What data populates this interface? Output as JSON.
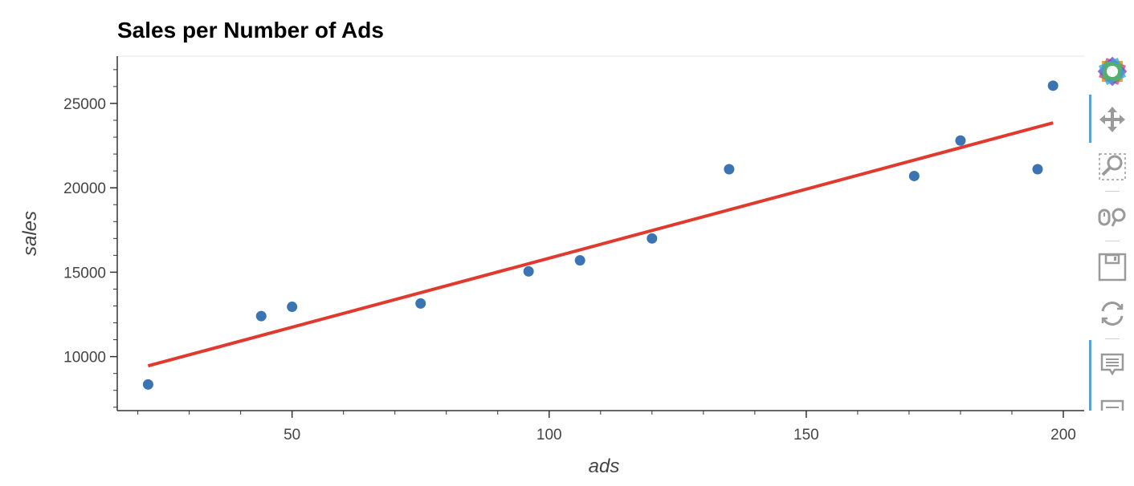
{
  "chart_data": {
    "type": "scatter",
    "title": "Sales per Number of Ads",
    "xlabel": "ads",
    "ylabel": "sales",
    "xlim": [
      16,
      205
    ],
    "ylim": [
      6800,
      27800
    ],
    "x_ticks": [
      50,
      100,
      150,
      200
    ],
    "y_ticks": [
      10000,
      15000,
      20000,
      25000
    ],
    "points": [
      {
        "x": 22,
        "y": 8350
      },
      {
        "x": 44,
        "y": 12400
      },
      {
        "x": 50,
        "y": 12950
      },
      {
        "x": 75,
        "y": 13150
      },
      {
        "x": 96,
        "y": 15050
      },
      {
        "x": 106,
        "y": 15700
      },
      {
        "x": 120,
        "y": 17000
      },
      {
        "x": 135,
        "y": 21100
      },
      {
        "x": 171,
        "y": 20700
      },
      {
        "x": 180,
        "y": 22800
      },
      {
        "x": 195,
        "y": 21100
      },
      {
        "x": 198,
        "y": 26050
      }
    ],
    "trend_line": {
      "x": [
        22,
        198
      ],
      "y": [
        9450,
        23850
      ]
    },
    "colors": {
      "points": "#3a74b3",
      "trend_line": "#e03a2e",
      "axis": "#333333"
    }
  },
  "toolbar": {
    "tools": [
      {
        "icon": "bokeh-logo-icon",
        "name": "Bokeh"
      },
      {
        "icon": "pan-icon",
        "name": "Pan",
        "active": true
      },
      {
        "icon": "box-zoom-icon",
        "name": "Box Zoom"
      },
      {
        "icon": "wheel-zoom-icon",
        "name": "Wheel Zoom"
      },
      {
        "icon": "save-icon",
        "name": "Save"
      },
      {
        "icon": "reset-icon",
        "name": "Reset"
      },
      {
        "icon": "hover-icon",
        "name": "Hover",
        "active": true
      },
      {
        "icon": "help-icon",
        "name": "Help"
      }
    ]
  }
}
